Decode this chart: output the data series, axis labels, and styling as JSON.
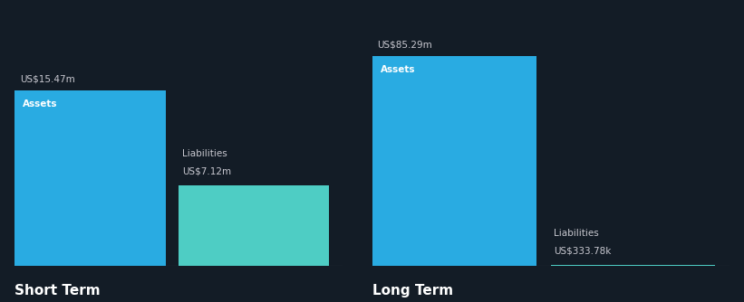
{
  "background_color": "#131c26",
  "bar_color_assets": "#29abe2",
  "bar_color_liabilities": "#4ecdc4",
  "text_color": "#ffffff",
  "label_color": "#c8c8d0",
  "short_term": {
    "assets_value": 15.47,
    "liabilities_value": 7.12,
    "assets_label": "US$15.47m",
    "liabilities_label": "US$7.12m",
    "assets_text": "Assets",
    "liabilities_text": "Liabilities",
    "title": "Short Term"
  },
  "long_term": {
    "assets_value": 85.29,
    "liabilities_value": 0.33378,
    "assets_label": "US$85.29m",
    "liabilities_label": "US$333.78k",
    "assets_text": "Assets",
    "liabilities_text": "Liabilities",
    "title": "Long Term"
  }
}
